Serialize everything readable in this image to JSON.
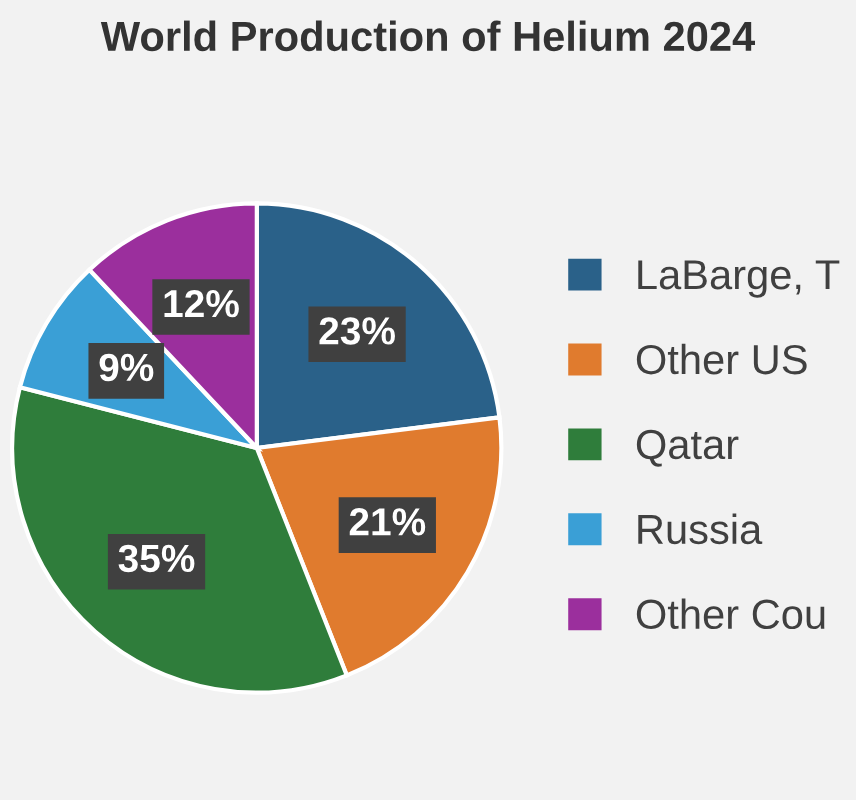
{
  "chart_data": {
    "type": "pie",
    "title": "World Production of Helium 2024",
    "categories": [
      "LaBarge, T",
      "Other US",
      "Qatar",
      "Russia",
      "Other Cou"
    ],
    "values": [
      23,
      21,
      35,
      9,
      12
    ],
    "colors": [
      "#2a6189",
      "#e07b2e",
      "#2f7d3b",
      "#3a9fd6",
      "#9b2f9d"
    ],
    "value_labels": [
      "23%",
      "21%",
      "35%",
      "9%",
      "12%"
    ],
    "legend": "right"
  }
}
